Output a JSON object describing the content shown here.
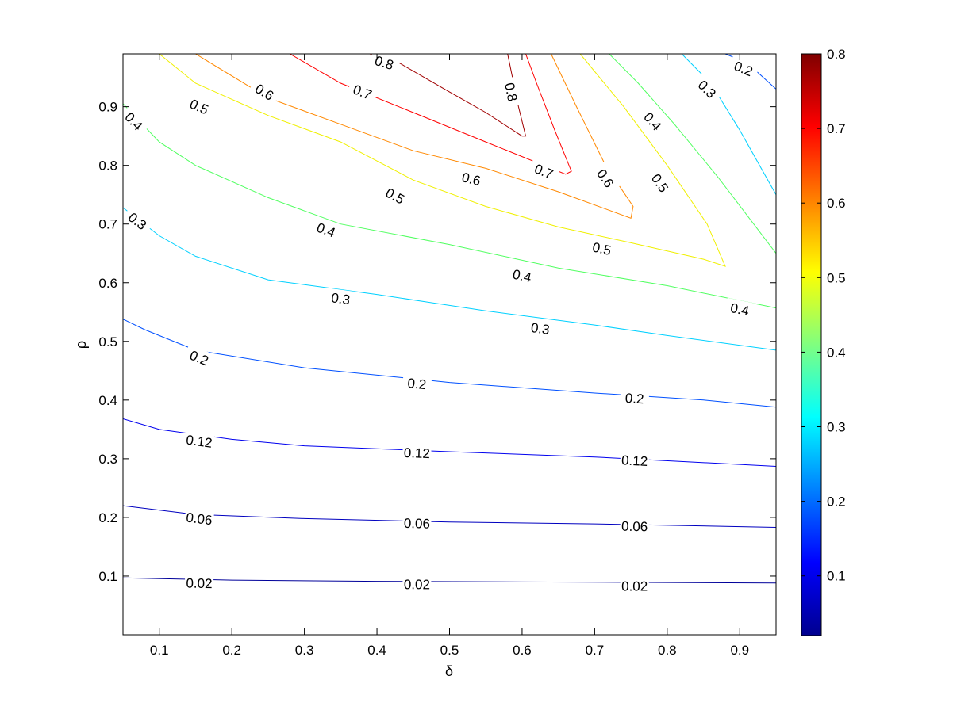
{
  "chart_data": {
    "type": "contour",
    "xlabel": "δ",
    "ylabel": "ρ",
    "xlim": [
      0.05,
      0.95
    ],
    "ylim": [
      0.0,
      0.99
    ],
    "x_ticks": [
      "0.1",
      "0.2",
      "0.3",
      "0.4",
      "0.5",
      "0.6",
      "0.7",
      "0.8",
      "0.9"
    ],
    "y_ticks": [
      "0.1",
      "0.2",
      "0.3",
      "0.4",
      "0.5",
      "0.6",
      "0.7",
      "0.8",
      "0.9"
    ],
    "grid": false,
    "colormap": "jet",
    "colorbar": {
      "range": [
        0.02,
        0.8
      ],
      "ticks": [
        "0.1",
        "0.2",
        "0.3",
        "0.4",
        "0.5",
        "0.6",
        "0.7",
        "0.8"
      ]
    },
    "contours": [
      {
        "level": 0.02,
        "label": "0.02",
        "color": "#00009a",
        "points": [
          [
            0.05,
            0.097
          ],
          [
            0.2,
            0.093
          ],
          [
            0.4,
            0.091
          ],
          [
            0.6,
            0.09
          ],
          [
            0.8,
            0.089
          ],
          [
            0.95,
            0.088
          ]
        ],
        "labels": [
          [
            0.155,
            0.088
          ],
          [
            0.455,
            0.086
          ],
          [
            0.755,
            0.083
          ]
        ]
      },
      {
        "level": 0.06,
        "label": "0.06",
        "color": "#0000bf",
        "points": [
          [
            0.05,
            0.22
          ],
          [
            0.15,
            0.205
          ],
          [
            0.3,
            0.198
          ],
          [
            0.5,
            0.192
          ],
          [
            0.7,
            0.189
          ],
          [
            0.95,
            0.183
          ]
        ],
        "labels": [
          [
            0.155,
            0.198
          ],
          [
            0.455,
            0.19
          ],
          [
            0.755,
            0.185
          ]
        ]
      },
      {
        "level": 0.12,
        "label": "0.12",
        "color": "#0000ee",
        "points": [
          [
            0.05,
            0.368
          ],
          [
            0.1,
            0.35
          ],
          [
            0.2,
            0.333
          ],
          [
            0.3,
            0.322
          ],
          [
            0.5,
            0.312
          ],
          [
            0.7,
            0.303
          ],
          [
            0.95,
            0.287
          ]
        ],
        "labels": [
          [
            0.155,
            0.33
          ],
          [
            0.455,
            0.31
          ],
          [
            0.755,
            0.297
          ]
        ]
      },
      {
        "level": 0.2,
        "label": "0.2",
        "color": "#0050ff",
        "points": [
          [
            0.05,
            0.538
          ],
          [
            0.08,
            0.52
          ],
          [
            0.15,
            0.485
          ],
          [
            0.3,
            0.455
          ],
          [
            0.5,
            0.43
          ],
          [
            0.7,
            0.412
          ],
          [
            0.85,
            0.4
          ],
          [
            0.95,
            0.388
          ]
        ],
        "labels": [
          [
            0.155,
            0.472
          ],
          [
            0.455,
            0.428
          ],
          [
            0.755,
            0.403
          ]
        ]
      },
      {
        "level": 0.2,
        "label": "0.2",
        "color": "#0050ff",
        "points": [
          [
            0.88,
            0.99
          ],
          [
            0.91,
            0.975
          ],
          [
            0.95,
            0.93
          ]
        ],
        "labels": [
          [
            0.905,
            0.965
          ]
        ]
      },
      {
        "level": 0.3,
        "label": "0.3",
        "color": "#00d0ff",
        "points": [
          [
            0.05,
            0.728
          ],
          [
            0.1,
            0.68
          ],
          [
            0.15,
            0.645
          ],
          [
            0.25,
            0.605
          ],
          [
            0.4,
            0.58
          ],
          [
            0.55,
            0.552
          ],
          [
            0.7,
            0.528
          ],
          [
            0.8,
            0.51
          ],
          [
            0.95,
            0.485
          ]
        ],
        "labels": [
          [
            0.07,
            0.705
          ],
          [
            0.35,
            0.573
          ],
          [
            0.625,
            0.522
          ]
        ]
      },
      {
        "level": 0.3,
        "label": "0.3",
        "color": "#00d0ff",
        "points": [
          [
            0.82,
            0.99
          ],
          [
            0.86,
            0.94
          ],
          [
            0.9,
            0.86
          ],
          [
            0.95,
            0.75
          ]
        ],
        "labels": [
          [
            0.855,
            0.93
          ]
        ]
      },
      {
        "level": 0.4,
        "label": "0.4",
        "color": "#50ff60",
        "points": [
          [
            0.05,
            0.905
          ],
          [
            0.1,
            0.84
          ],
          [
            0.15,
            0.8
          ],
          [
            0.25,
            0.745
          ],
          [
            0.35,
            0.7
          ],
          [
            0.5,
            0.665
          ],
          [
            0.65,
            0.625
          ],
          [
            0.8,
            0.595
          ],
          [
            0.95,
            0.557
          ]
        ],
        "labels": [
          [
            0.065,
            0.875
          ],
          [
            0.33,
            0.69
          ],
          [
            0.6,
            0.612
          ],
          [
            0.9,
            0.555
          ]
        ]
      },
      {
        "level": 0.4,
        "label": "0.4",
        "color": "#50ff60",
        "points": [
          [
            0.72,
            0.99
          ],
          [
            0.76,
            0.94
          ],
          [
            0.81,
            0.87
          ],
          [
            0.87,
            0.78
          ],
          [
            0.95,
            0.65
          ]
        ],
        "labels": [
          [
            0.78,
            0.875
          ]
        ]
      },
      {
        "level": 0.5,
        "label": "0.5",
        "color": "#f0f000",
        "points": [
          [
            0.1,
            0.99
          ],
          [
            0.15,
            0.94
          ],
          [
            0.25,
            0.885
          ],
          [
            0.35,
            0.84
          ],
          [
            0.45,
            0.775
          ],
          [
            0.55,
            0.73
          ],
          [
            0.65,
            0.695
          ],
          [
            0.75,
            0.668
          ],
          [
            0.85,
            0.64
          ],
          [
            0.88,
            0.628
          ],
          [
            0.855,
            0.7
          ],
          [
            0.8,
            0.8
          ],
          [
            0.74,
            0.9
          ],
          [
            0.68,
            0.99
          ]
        ],
        "labels": [
          [
            0.155,
            0.9
          ],
          [
            0.425,
            0.748
          ],
          [
            0.71,
            0.658
          ],
          [
            0.79,
            0.77
          ]
        ]
      },
      {
        "level": 0.6,
        "label": "0.6",
        "color": "#ff8800",
        "points": [
          [
            0.15,
            0.99
          ],
          [
            0.25,
            0.915
          ],
          [
            0.35,
            0.87
          ],
          [
            0.45,
            0.825
          ],
          [
            0.55,
            0.795
          ],
          [
            0.65,
            0.755
          ],
          [
            0.75,
            0.71
          ],
          [
            0.753,
            0.73
          ],
          [
            0.715,
            0.8
          ],
          [
            0.675,
            0.9
          ],
          [
            0.64,
            0.99
          ]
        ],
        "labels": [
          [
            0.245,
            0.925
          ],
          [
            0.53,
            0.777
          ],
          [
            0.715,
            0.778
          ]
        ]
      },
      {
        "level": 0.7,
        "label": "0.7",
        "color": "#ff0000",
        "points": [
          [
            0.28,
            0.99
          ],
          [
            0.35,
            0.94
          ],
          [
            0.45,
            0.89
          ],
          [
            0.55,
            0.84
          ],
          [
            0.66,
            0.785
          ],
          [
            0.668,
            0.79
          ],
          [
            0.645,
            0.86
          ],
          [
            0.62,
            0.94
          ],
          [
            0.605,
            0.99
          ]
        ],
        "labels": [
          [
            0.38,
            0.925
          ],
          [
            0.63,
            0.79
          ]
        ]
      },
      {
        "level": 0.8,
        "label": "0.8",
        "color": "#a00000",
        "points": [
          [
            0.39,
            0.99
          ],
          [
            0.43,
            0.975
          ],
          [
            0.5,
            0.925
          ],
          [
            0.55,
            0.89
          ],
          [
            0.6,
            0.85
          ],
          [
            0.605,
            0.85
          ],
          [
            0.595,
            0.9
          ],
          [
            0.58,
            0.99
          ]
        ],
        "labels": [
          [
            0.41,
            0.975
          ],
          [
            0.585,
            0.925
          ]
        ]
      }
    ]
  }
}
